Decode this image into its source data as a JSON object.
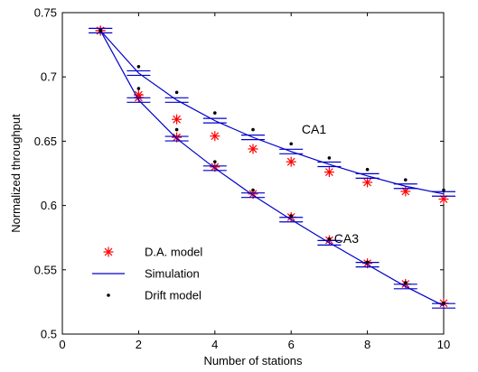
{
  "chart_data": {
    "type": "line",
    "xlabel": "Number of stations",
    "ylabel": "Normalized throughput",
    "xlim": [
      0,
      10
    ],
    "ylim": [
      0.5,
      0.75
    ],
    "xticks": [
      0,
      2,
      4,
      6,
      8,
      10
    ],
    "yticks": [
      0.5,
      0.55,
      0.6,
      0.65,
      0.7,
      0.75
    ],
    "xtick_labels": [
      "0",
      "2",
      "4",
      "6",
      "8",
      "10"
    ],
    "ytick_labels": [
      "0.5",
      "0.55",
      "0.6",
      "0.65",
      "0.7",
      "0.75"
    ],
    "grid": false,
    "legend_position": "bottom-left",
    "annotations": [
      {
        "text": "CA1",
        "x": 6.6,
        "y": 0.656
      },
      {
        "text": "CA3",
        "x": 7.45,
        "y": 0.571
      }
    ],
    "series": [
      {
        "name": "D.A. model",
        "marker": "asterisk",
        "color": "#ff0000",
        "groups": [
          {
            "label": "CA1",
            "x": [
              1,
              2,
              3,
              4,
              5,
              6,
              7,
              8,
              9,
              10
            ],
            "y": [
              0.736,
              0.686,
              0.667,
              0.654,
              0.644,
              0.634,
              0.626,
              0.618,
              0.611,
              0.605
            ]
          },
          {
            "label": "CA3",
            "x": [
              1,
              2,
              3,
              4,
              5,
              6,
              7,
              8,
              9,
              10
            ],
            "y": [
              0.736,
              0.684,
              0.653,
              0.63,
              0.609,
              0.591,
              0.573,
              0.555,
              0.539,
              0.524
            ]
          }
        ]
      },
      {
        "name": "Simulation",
        "marker": "line",
        "color": "#0000cc",
        "groups": [
          {
            "label": "CA1",
            "x": [
              1,
              2,
              3,
              4,
              5,
              6,
              7,
              8,
              9,
              10
            ],
            "y": [
              0.736,
              0.703,
              0.682,
              0.666,
              0.653,
              0.642,
              0.632,
              0.623,
              0.615,
              0.609
            ]
          },
          {
            "label": "CA3",
            "x": [
              1,
              2,
              3,
              4,
              5,
              6,
              7,
              8,
              9,
              10
            ],
            "y": [
              0.736,
              0.682,
              0.652,
              0.629,
              0.608,
              0.589,
              0.571,
              0.554,
              0.537,
              0.522
            ]
          }
        ]
      },
      {
        "name": "Drift model",
        "marker": "dot",
        "color": "#000000",
        "groups": [
          {
            "label": "CA1",
            "x": [
              1,
              2,
              3,
              4,
              5,
              6,
              7,
              8,
              9,
              10
            ],
            "y": [
              0.736,
              0.708,
              0.688,
              0.672,
              0.659,
              0.648,
              0.637,
              0.628,
              0.62,
              0.612
            ]
          },
          {
            "label": "CA3",
            "x": [
              1,
              2,
              3,
              4,
              5,
              6,
              7,
              8,
              9,
              10
            ],
            "y": [
              0.736,
              0.691,
              0.659,
              0.634,
              0.612,
              0.592,
              0.574,
              0.556,
              0.54,
              0.524
            ]
          }
        ]
      }
    ],
    "legend": [
      {
        "label": "D.A. model",
        "marker": "asterisk",
        "color": "#ff0000"
      },
      {
        "label": "Simulation",
        "marker": "line",
        "color": "#0000cc"
      },
      {
        "label": "Drift model",
        "marker": "dot",
        "color": "#000000"
      }
    ]
  }
}
